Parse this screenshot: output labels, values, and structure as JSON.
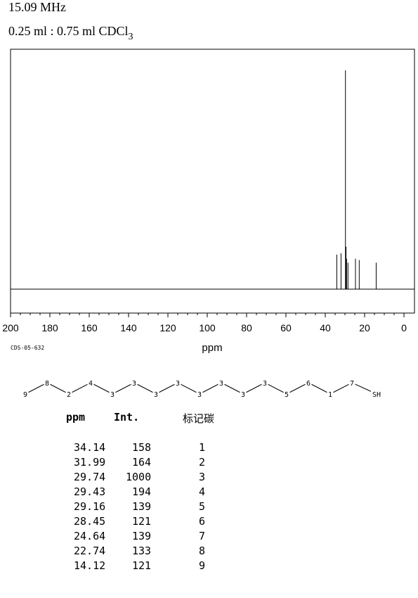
{
  "header": {
    "frequency": "15.09 MHz",
    "solvent_prefix": "0.25 ml : 0.75 ml CDCl",
    "solvent_subscript": "3"
  },
  "catalog_id": "CDS-05-632",
  "chart_data": {
    "type": "line",
    "title": "",
    "xlabel": "ppm",
    "ylabel": "",
    "xlim": [
      200,
      0
    ],
    "x_ticks": [
      200,
      180,
      160,
      140,
      120,
      100,
      80,
      60,
      40,
      20,
      0
    ],
    "peaks": [
      {
        "ppm": 34.14,
        "intensity": 158
      },
      {
        "ppm": 31.99,
        "intensity": 164
      },
      {
        "ppm": 29.74,
        "intensity": 1000
      },
      {
        "ppm": 29.43,
        "intensity": 194
      },
      {
        "ppm": 29.16,
        "intensity": 139
      },
      {
        "ppm": 28.45,
        "intensity": 121
      },
      {
        "ppm": 24.64,
        "intensity": 139
      },
      {
        "ppm": 22.74,
        "intensity": 133
      },
      {
        "ppm": 14.12,
        "intensity": 121
      }
    ]
  },
  "structure": {
    "nodes": [
      "9",
      "8",
      "2",
      "4",
      "3",
      "3",
      "3",
      "3",
      "3",
      "3",
      "3",
      "3",
      "5",
      "6",
      "1",
      "7",
      "SH"
    ]
  },
  "table": {
    "headers": {
      "ppm": "ppm",
      "int": "Int.",
      "carbon": "标记碳"
    },
    "rows": [
      {
        "ppm": "34.14",
        "int": "158",
        "carbon": "1"
      },
      {
        "ppm": "31.99",
        "int": "164",
        "carbon": "2"
      },
      {
        "ppm": "29.74",
        "int": "1000",
        "carbon": "3"
      },
      {
        "ppm": "29.43",
        "int": "194",
        "carbon": "4"
      },
      {
        "ppm": "29.16",
        "int": "139",
        "carbon": "5"
      },
      {
        "ppm": "28.45",
        "int": "121",
        "carbon": "6"
      },
      {
        "ppm": "24.64",
        "int": "139",
        "carbon": "7"
      },
      {
        "ppm": "22.74",
        "int": "133",
        "carbon": "8"
      },
      {
        "ppm": "14.12",
        "int": "121",
        "carbon": "9"
      }
    ]
  }
}
